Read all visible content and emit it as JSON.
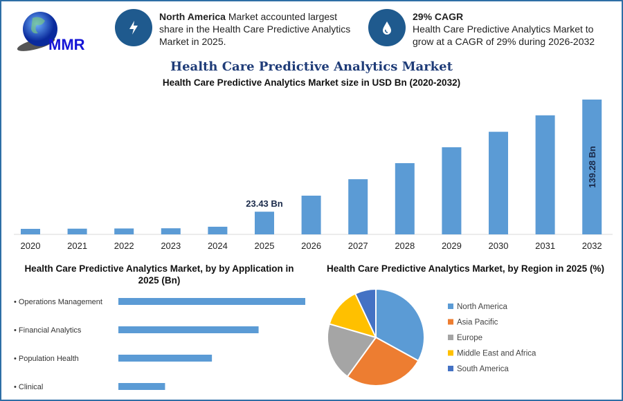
{
  "logo": {
    "text": "MMR"
  },
  "header": {
    "info1": {
      "bold": "North America",
      "text": " Market accounted largest share in the Health Care Predictive Analytics Market in 2025.",
      "icon": "lightning-icon"
    },
    "info2": {
      "bold": "29% CAGR",
      "text": "Health Care Predictive Analytics Market to grow at a CAGR of 29% during 2026-2032",
      "icon": "drop-icon"
    }
  },
  "title": "Health Care Predictive Analytics Market",
  "chart_data": [
    {
      "type": "bar",
      "title": "Health Care Predictive Analytics Market size in USD Bn (2020-2032)",
      "categories": [
        "2020",
        "2021",
        "2022",
        "2023",
        "2024",
        "2025",
        "2026",
        "2027",
        "2028",
        "2029",
        "2030",
        "2031",
        "2032"
      ],
      "values": [
        5.7,
        5.9,
        6.1,
        6.3,
        7.9,
        23.43,
        40,
        57,
        73.6,
        90,
        106,
        123,
        139.28
      ],
      "data_labels": {
        "2025": "23.43 Bn",
        "2032": "139.28 Bn"
      },
      "color": "#5b9bd5",
      "grid": false
    },
    {
      "type": "bar",
      "orientation": "horizontal",
      "title": "Health Care Predictive Analytics Market, by by Application in 2025 (Bn)",
      "categories": [
        "Operations Management",
        "Financial Analytics",
        "Population Health",
        "Clinical"
      ],
      "values": [
        9.37,
        7.03,
        4.69,
        2.34
      ],
      "color": "#5b9bd5"
    },
    {
      "type": "pie",
      "title": "Health Care Predictive Analytics Market, by Region in 2025 (%)",
      "categories": [
        "North America",
        "Asia Pacific",
        "Europe",
        "Middle East and Africa",
        "South America"
      ],
      "values": [
        33,
        27,
        19.5,
        13.5,
        7
      ],
      "colors": [
        "#5b9bd5",
        "#ed7d31",
        "#a5a5a5",
        "#ffc000",
        "#4472c4"
      ],
      "legend": "right"
    }
  ]
}
